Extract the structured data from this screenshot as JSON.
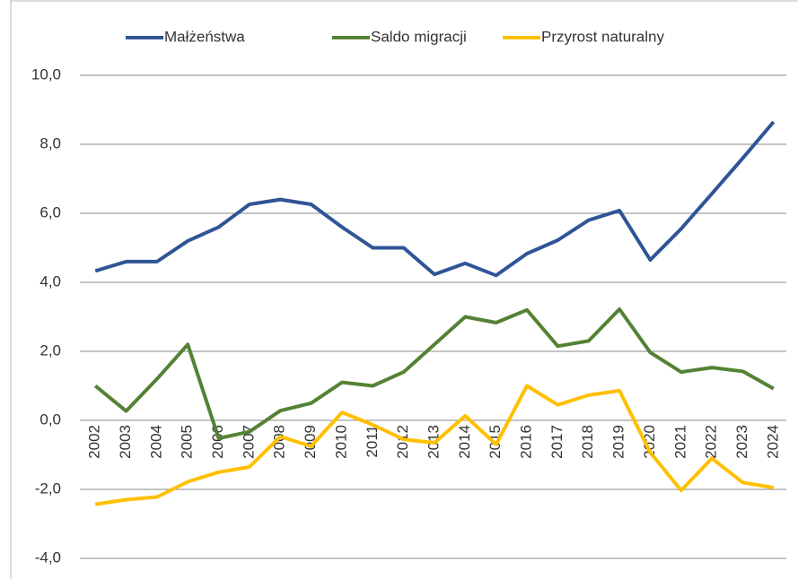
{
  "chart_data": {
    "type": "line",
    "categories": [
      "2002",
      "2003",
      "2004",
      "2005",
      "2006",
      "2007",
      "2008",
      "2009",
      "2010",
      "2011",
      "2012",
      "2013",
      "2014",
      "2015",
      "2016",
      "2017",
      "2018",
      "2019",
      "2020",
      "2021",
      "2022",
      "2023",
      "2024"
    ],
    "series": [
      {
        "name": "Małżeństwa",
        "color": "#2f5597",
        "values": [
          4.33,
          4.6,
          4.6,
          5.2,
          5.6,
          6.26,
          6.4,
          6.26,
          5.6,
          5.0,
          5.0,
          4.23,
          4.55,
          4.2,
          4.83,
          5.22,
          5.8,
          6.08,
          4.65,
          5.55,
          6.57,
          7.6,
          8.65
        ]
      },
      {
        "name": "Saldo migracji",
        "color": "#548235",
        "values": [
          1.0,
          0.27,
          1.2,
          2.2,
          -0.52,
          -0.33,
          0.28,
          0.5,
          1.1,
          1.0,
          1.4,
          2.2,
          3.0,
          2.83,
          3.2,
          2.15,
          2.3,
          3.22,
          1.97,
          1.4,
          1.53,
          1.42,
          0.92
        ]
      },
      {
        "name": "Przyrost naturalny",
        "color": "#ffc000",
        "values": [
          -2.43,
          -2.3,
          -2.22,
          -1.78,
          -1.5,
          -1.35,
          -0.47,
          -0.75,
          0.23,
          -0.13,
          -0.55,
          -0.65,
          0.13,
          -0.7,
          1.0,
          0.45,
          0.73,
          0.86,
          -0.93,
          -2.03,
          -1.1,
          -1.8,
          -1.95
        ]
      }
    ],
    "ylim": [
      -4,
      10
    ],
    "yticks": [
      {
        "value": -4,
        "label": "-4,0"
      },
      {
        "value": -2,
        "label": "-2,0"
      },
      {
        "value": 0,
        "label": "0,0"
      },
      {
        "value": 2,
        "label": "2,0"
      },
      {
        "value": 4,
        "label": "4,0"
      },
      {
        "value": 6,
        "label": "6,0"
      },
      {
        "value": 8,
        "label": "8,0"
      },
      {
        "value": 10,
        "label": "10,0"
      }
    ],
    "grid": true,
    "legend": "top"
  }
}
